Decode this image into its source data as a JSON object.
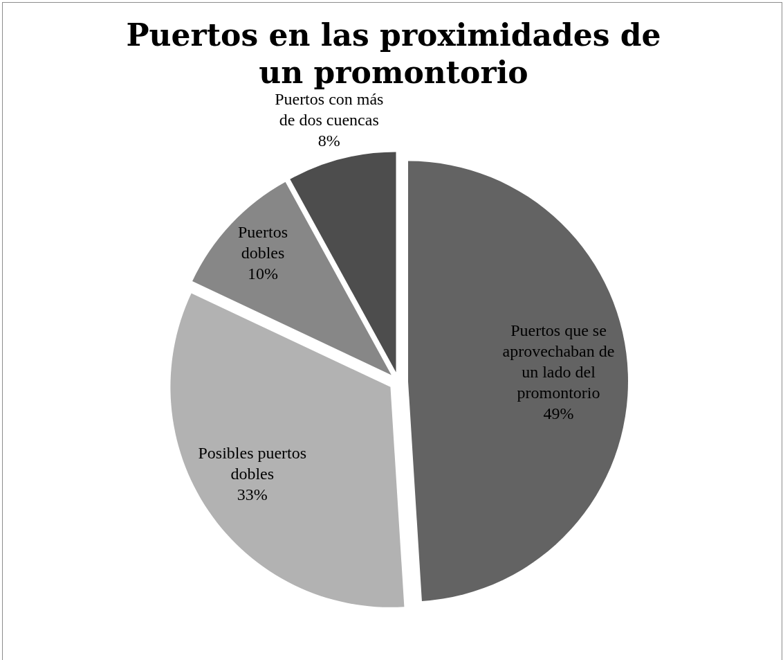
{
  "chart_data": {
    "type": "pie",
    "title": "Puertos en las proximidades de un promontorio",
    "categories": [
      "Puertos que se aprovechaban de un lado del promontorio",
      "Posibles puertos dobles",
      "Puertos dobles",
      "Puertos con más de dos cuencas"
    ],
    "values": [
      49,
      33,
      10,
      8
    ],
    "colors": [
      "#636363",
      "#b2b2b2",
      "#878787",
      "#4d4d4d"
    ],
    "value_labels": [
      "49%",
      "33%",
      "10%",
      "8%"
    ]
  }
}
